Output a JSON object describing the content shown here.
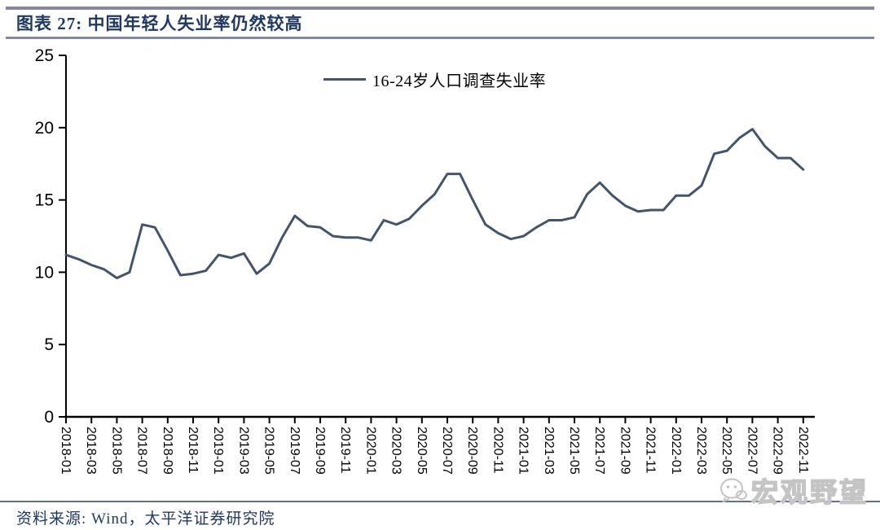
{
  "page": {
    "title": "图表 27: 中国年轻人失业率仍然较高",
    "source_note": "资料来源: Wind，太平洋证券研究院",
    "watermark_text": "宏观野望",
    "watermark_icon": "wechat-icon"
  },
  "colors": {
    "title_text": "#1F3864",
    "rule": "#8288A4",
    "footer_rule": "#666E96",
    "series_line": "#44546A",
    "axis": "#000000",
    "watermark": "#C4C4C4"
  },
  "chart_data": {
    "type": "line",
    "title": "",
    "legend": [
      "16-24岁人口调查失业率"
    ],
    "legend_position": "top-center",
    "grid": false,
    "ylim": [
      0,
      25
    ],
    "y_ticks": [
      0,
      5,
      10,
      15,
      20,
      25
    ],
    "x_tick_interval": 2,
    "x": [
      "2018-01",
      "2018-02",
      "2018-03",
      "2018-04",
      "2018-05",
      "2018-06",
      "2018-07",
      "2018-08",
      "2018-09",
      "2018-10",
      "2018-11",
      "2018-12",
      "2019-01",
      "2019-02",
      "2019-03",
      "2019-04",
      "2019-05",
      "2019-06",
      "2019-07",
      "2019-08",
      "2019-09",
      "2019-10",
      "2019-11",
      "2019-12",
      "2020-01",
      "2020-02",
      "2020-03",
      "2020-04",
      "2020-05",
      "2020-06",
      "2020-07",
      "2020-08",
      "2020-09",
      "2020-10",
      "2020-11",
      "2020-12",
      "2021-01",
      "2021-02",
      "2021-03",
      "2021-04",
      "2021-05",
      "2021-06",
      "2021-07",
      "2021-08",
      "2021-09",
      "2021-10",
      "2021-11",
      "2021-12",
      "2022-01",
      "2022-02",
      "2022-03",
      "2022-04",
      "2022-05",
      "2022-06",
      "2022-07",
      "2022-08",
      "2022-09",
      "2022-10",
      "2022-11"
    ],
    "series": [
      {
        "name": "16-24岁人口调查失业率",
        "values": [
          11.2,
          10.9,
          10.5,
          10.2,
          9.6,
          10.0,
          13.3,
          13.1,
          11.5,
          9.8,
          9.9,
          10.1,
          11.2,
          11.0,
          11.3,
          9.9,
          10.6,
          12.4,
          13.9,
          13.2,
          13.1,
          12.5,
          12.4,
          12.4,
          12.2,
          13.6,
          13.3,
          13.7,
          14.6,
          15.4,
          16.8,
          16.8,
          15.0,
          13.3,
          12.7,
          12.3,
          12.5,
          13.1,
          13.6,
          13.6,
          13.8,
          15.4,
          16.2,
          15.3,
          14.6,
          14.2,
          14.3,
          14.3,
          15.3,
          15.3,
          16.0,
          18.2,
          18.4,
          19.3,
          19.9,
          18.7,
          17.9,
          17.9,
          17.1
        ]
      }
    ]
  }
}
